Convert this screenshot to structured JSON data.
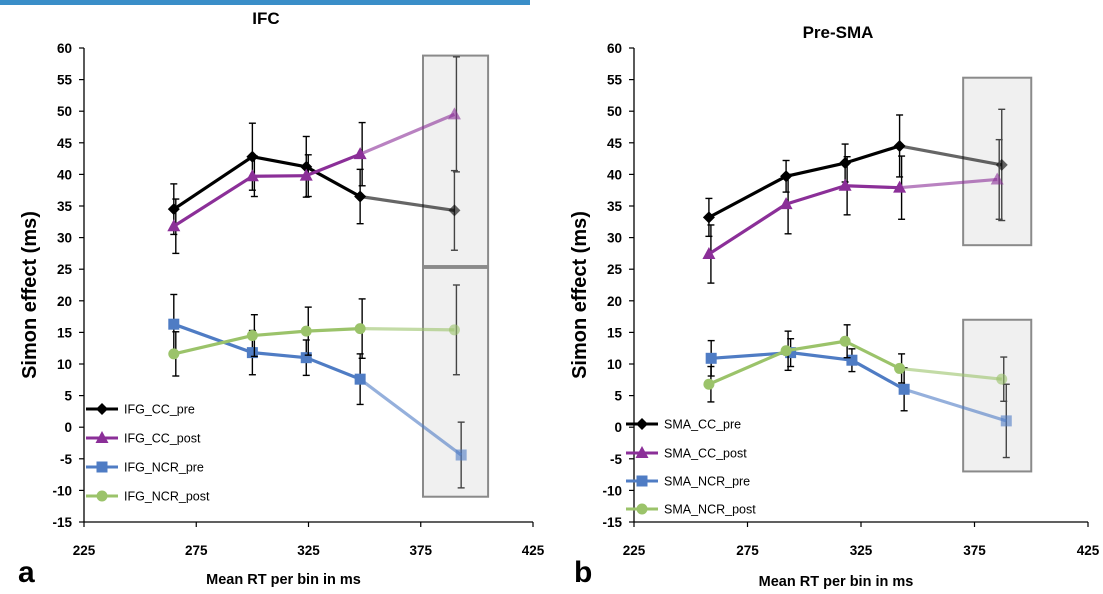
{
  "panels": [
    {
      "letter": "a",
      "chart_data": {
        "type": "line",
        "title": "IFC",
        "xlabel": "Mean RT per bin in ms",
        "ylabel": "Simon effect (ms)",
        "xlim": [
          225,
          425
        ],
        "ylim": [
          -15,
          60
        ],
        "x_ticks": [
          225,
          275,
          325,
          375,
          425
        ],
        "y_ticks": [
          -15,
          -10,
          -5,
          0,
          5,
          10,
          15,
          20,
          25,
          30,
          35,
          40,
          45,
          50,
          55,
          60
        ],
        "grid": false,
        "legend_position": "bottom-left",
        "series": [
          {
            "name": "IFG_CC_pre",
            "color": "#000000",
            "marker": "diamond",
            "x": [
              265,
              300,
              324,
              348,
              390
            ],
            "y": [
              34.5,
              42.8,
              41.2,
              36.5,
              34.3
            ],
            "err": [
              4.0,
              5.3,
              4.8,
              4.3,
              6.3
            ]
          },
          {
            "name": "IFG_CC_post",
            "color": "#8b2f98",
            "marker": "triangle",
            "x": [
              265,
              300,
              324,
              348,
              390
            ],
            "y": [
              31.8,
              39.7,
              39.8,
              43.2,
              49.5
            ],
            "err": [
              4.3,
              3.2,
              3.3,
              5.0,
              9.1
            ]
          },
          {
            "name": "IFG_NCR_pre",
            "color": "#4f7cc4",
            "marker": "square",
            "x": [
              265,
              300,
              324,
              348,
              393
            ],
            "y": [
              16.3,
              11.8,
              11.0,
              7.6,
              -4.4
            ],
            "err": [
              4.7,
              3.5,
              2.8,
              4.0,
              5.2
            ]
          },
          {
            "name": "IFG_NCR_post",
            "color": "#9bc36a",
            "marker": "circle",
            "x": [
              265,
              300,
              324,
              348,
              390
            ],
            "y": [
              11.6,
              14.5,
              15.2,
              15.6,
              15.4
            ],
            "err": [
              3.5,
              3.3,
              3.8,
              4.7,
              7.1
            ]
          }
        ],
        "highlight_regions": [
          {
            "x": [
              376,
              405
            ],
            "y": [
              25.5,
              58.8
            ]
          },
          {
            "x": [
              376,
              405
            ],
            "y": [
              -11,
              25.2
            ]
          }
        ]
      }
    },
    {
      "letter": "b",
      "chart_data": {
        "type": "line",
        "title": "Pre-SMA",
        "xlabel": "Mean RT per bin in ms",
        "ylabel": "Simon effect (ms)",
        "xlim": [
          225,
          425
        ],
        "ylim": [
          -15,
          60
        ],
        "x_ticks": [
          225,
          275,
          325,
          375,
          425
        ],
        "y_ticks": [
          -15,
          -10,
          -5,
          0,
          5,
          10,
          15,
          20,
          25,
          30,
          35,
          40,
          45,
          50,
          55,
          60
        ],
        "grid": false,
        "legend_position": "bottom-left",
        "series": [
          {
            "name": "SMA_CC_pre",
            "color": "#000000",
            "marker": "diamond",
            "x": [
              258,
              292,
              318,
              342,
              387
            ],
            "y": [
              33.2,
              39.7,
              41.8,
              44.5,
              41.5
            ],
            "err": [
              3.0,
              2.5,
              3.0,
              4.9,
              8.8
            ]
          },
          {
            "name": "SMA_CC_post",
            "color": "#8b2f98",
            "marker": "triangle",
            "x": [
              258,
              292,
              318,
              342,
              385
            ],
            "y": [
              27.4,
              35.3,
              38.2,
              37.9,
              39.2
            ],
            "err": [
              4.6,
              4.7,
              4.6,
              5.0,
              6.3
            ]
          },
          {
            "name": "SMA_NCR_pre",
            "color": "#4f7cc4",
            "marker": "square",
            "x": [
              259,
              294,
              321,
              344,
              389
            ],
            "y": [
              10.9,
              11.8,
              10.6,
              6.0,
              1.0
            ],
            "err": [
              2.8,
              2.2,
              1.8,
              3.4,
              5.8
            ]
          },
          {
            "name": "SMA_NCR_post",
            "color": "#9bc36a",
            "marker": "circle",
            "x": [
              258,
              292,
              318,
              342,
              387
            ],
            "y": [
              6.8,
              12.1,
              13.6,
              9.3,
              7.6
            ],
            "err": [
              2.8,
              3.1,
              2.6,
              2.3,
              3.5
            ]
          }
        ],
        "highlight_regions": [
          {
            "x": [
              370,
              400
            ],
            "y": [
              28.8,
              55.3
            ]
          },
          {
            "x": [
              370,
              400
            ],
            "y": [
              -7,
              17
            ]
          }
        ]
      }
    }
  ]
}
